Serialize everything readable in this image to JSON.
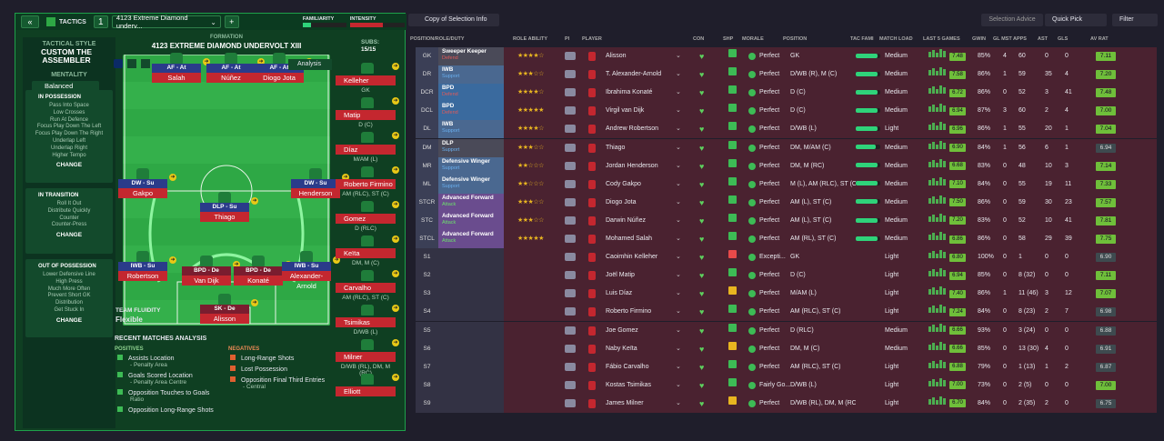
{
  "topbar": {
    "tactics_label": "TACTICS",
    "slot": "1",
    "tactic_name": "4123 Extreme Diamond underv...",
    "familiarity": "FAMILIARITY",
    "intensity": "INTENSITY"
  },
  "sidebar": {
    "style_label": "TACTICAL STYLE",
    "style_name": "CUSTOM THE ASSEMBLER",
    "mentality_label": "MENTALITY",
    "mentality": "Balanced",
    "in_possession": {
      "title": "IN POSSESSION",
      "items": [
        "Pass Into Space",
        "Low Crosses",
        "Run At Defence",
        "Focus Play Down The Left",
        "Focus Play Down The Right",
        "Underlap Left",
        "Underlap Right",
        "Higher Tempo"
      ],
      "change": "CHANGE"
    },
    "in_transition": {
      "title": "IN TRANSITION",
      "items": [
        "Roll It Out",
        "Distribute Quickly",
        "Counter",
        "Counter-Press"
      ],
      "change": "CHANGE"
    },
    "out_possession": {
      "title": "OUT OF POSSESSION",
      "items": [
        "Lower Defensive Line",
        "High Press",
        "Much More Often",
        "Prevent Short GK",
        "Distribution",
        "Get Stuck In"
      ],
      "change": "CHANGE"
    }
  },
  "formation": {
    "label": "FORMATION",
    "name": "4123 EXTREME DIAMOND UNDERVOLT XIII",
    "subs_label": "SUBS:",
    "subs_count": "15/15",
    "analysis": "Analysis",
    "fluidity_label": "TEAM FLUIDITY",
    "fluidity": "Flexible"
  },
  "pitch_players": [
    {
      "role": "AF - At",
      "name": "Salah"
    },
    {
      "role": "AF - At",
      "name": "Núñez"
    },
    {
      "role": "AF - At",
      "name": "Diogo Jota"
    },
    {
      "role": "DW - Su",
      "name": "Gakpo"
    },
    {
      "role": "DW - Su",
      "name": "Henderson"
    },
    {
      "role": "DLP - Su",
      "name": "Thiago"
    },
    {
      "role": "IWB - Su",
      "name": "Robertson"
    },
    {
      "role": "BPD - De",
      "name": "Van Dijk"
    },
    {
      "role": "BPD - De",
      "name": "Konaté"
    },
    {
      "role": "IWB - Su",
      "name": "Alexander-Arnold"
    },
    {
      "role": "SK - De",
      "name": "Alisson"
    }
  ],
  "subs": [
    {
      "name": "Kelleher",
      "pos": "GK"
    },
    {
      "name": "Matip",
      "pos": "D (C)"
    },
    {
      "name": "Díaz",
      "pos": "M/AM (L)"
    },
    {
      "name": "Roberto Firmino",
      "pos": "AM (RLC), ST (C)"
    },
    {
      "name": "Gomez",
      "pos": "D (RLC)"
    },
    {
      "name": "Keïta",
      "pos": "DM, M (C)"
    },
    {
      "name": "Carvalho",
      "pos": "AM (RLC), ST (C)"
    },
    {
      "name": "Tsimikas",
      "pos": "D/WB (L)"
    },
    {
      "name": "Milner",
      "pos": "D/WB (RL), DM, M (RC)"
    },
    {
      "name": "Elliott",
      "pos": ""
    }
  ],
  "analysis": {
    "title": "RECENT MATCHES ANALYSIS",
    "positives_label": "POSITIVES",
    "negatives_label": "NEGATIVES",
    "positives": [
      {
        "t": "Assists Location",
        "s": "- Penalty Area"
      },
      {
        "t": "Goals Scored Location",
        "s": "- Penalty Area Centre"
      },
      {
        "t": "Opposition Touches to Goals",
        "s": "Ratio"
      },
      {
        "t": "Opposition Long-Range Shots",
        "s": ""
      }
    ],
    "negatives": [
      {
        "t": "Long-Range Shots",
        "s": ""
      },
      {
        "t": "Lost Possession",
        "s": ""
      },
      {
        "t": "Opposition Final Third Entries",
        "s": "- Central"
      }
    ]
  },
  "right": {
    "copy_btn": "Copy of Selection Info",
    "selection_advice": "Selection Advice",
    "quick_pick": "Quick Pick",
    "filter": "Filter",
    "headers": [
      "POSITION/ROLE/DUTY",
      "ROLE ABILITY",
      "PI",
      "PLAYER",
      "CON",
      "SHP",
      "MORALE",
      "POSITION",
      "TAC FAMI",
      "MATCH LOAD",
      "LAST 5 GAMES",
      "GWIN",
      "GL MST",
      "APPS",
      "AST",
      "GLS",
      "AV RAT"
    ],
    "rows": [
      {
        "pos": "GK",
        "role": "Sweeper Keeper",
        "duty": "Defend",
        "stars": "★★★★☆",
        "player": "Alisson",
        "morale": "Perfect",
        "position": "GK",
        "load": "Medium",
        "gr": "7.48",
        "gwin": "85%",
        "glmst": "4",
        "apps": "60",
        "ast": "0",
        "gls": "0",
        "av": "7.11"
      },
      {
        "pos": "DR",
        "role": "IWB",
        "duty": "Support",
        "stars": "★★★☆☆",
        "player": "T. Alexander-Arnold",
        "morale": "Perfect",
        "position": "D/WB (R), M (C)",
        "load": "Medium",
        "gr": "7.58",
        "gwin": "86%",
        "glmst": "1",
        "apps": "59",
        "ast": "35",
        "gls": "4",
        "av": "7.20"
      },
      {
        "pos": "DCR",
        "role": "BPD",
        "duty": "Defend",
        "stars": "★★★★☆",
        "player": "Ibrahima Konaté",
        "morale": "Perfect",
        "position": "D (C)",
        "load": "Medium",
        "gr": "6.72",
        "gwin": "86%",
        "glmst": "0",
        "apps": "52",
        "ast": "3",
        "gls": "41",
        "av": "7.48"
      },
      {
        "pos": "DCL",
        "role": "BPD",
        "duty": "Defend",
        "stars": "★★★★★",
        "player": "Virgil van Dijk",
        "morale": "Perfect",
        "position": "D (C)",
        "load": "Medium",
        "gr": "6.94",
        "gwin": "87%",
        "glmst": "3",
        "apps": "60",
        "ast": "2",
        "gls": "4",
        "av": "7.00"
      },
      {
        "pos": "DL",
        "role": "IWB",
        "duty": "Support",
        "stars": "★★★★☆",
        "player": "Andrew Robertson",
        "morale": "Perfect",
        "position": "D/WB (L)",
        "load": "Light",
        "gr": "6.96",
        "gwin": "86%",
        "glmst": "1",
        "apps": "55",
        "ast": "20",
        "gls": "1",
        "av": "7.04"
      },
      {
        "pos": "DM",
        "role": "DLP",
        "duty": "Support",
        "stars": "★★★☆☆",
        "player": "Thiago",
        "morale": "Perfect",
        "position": "DM, M/AM (C)",
        "load": "Medium",
        "gr": "6.90",
        "gwin": "84%",
        "glmst": "1",
        "apps": "56",
        "ast": "6",
        "gls": "1",
        "av": "6.94"
      },
      {
        "pos": "MR",
        "role": "Defensive Winger",
        "duty": "Support",
        "stars": "★★☆☆☆",
        "player": "Jordan Henderson",
        "morale": "Perfect",
        "position": "DM, M (RC)",
        "load": "Medium",
        "gr": "6.68",
        "gwin": "83%",
        "glmst": "0",
        "apps": "48",
        "ast": "10",
        "gls": "3",
        "av": "7.14"
      },
      {
        "pos": "ML",
        "role": "Defensive Winger",
        "duty": "Support",
        "stars": "★★☆☆☆",
        "player": "Cody Gakpo",
        "morale": "Perfect",
        "position": "M (L), AM (RLC), ST (C)",
        "load": "Medium",
        "gr": "7.10",
        "gwin": "84%",
        "glmst": "0",
        "apps": "55",
        "ast": "19",
        "gls": "11",
        "av": "7.33"
      },
      {
        "pos": "STCR",
        "role": "Advanced Forward",
        "duty": "Attack",
        "stars": "★★★☆☆",
        "player": "Diogo Jota",
        "morale": "Perfect",
        "position": "AM (L), ST (C)",
        "load": "Medium",
        "gr": "7.50",
        "gwin": "86%",
        "glmst": "0",
        "apps": "59",
        "ast": "30",
        "gls": "23",
        "av": "7.57"
      },
      {
        "pos": "STC",
        "role": "Advanced Forward",
        "duty": "Attack",
        "stars": "★★★☆☆",
        "player": "Darwin Núñez",
        "morale": "Perfect",
        "position": "AM (L), ST (C)",
        "load": "Medium",
        "gr": "7.20",
        "gwin": "83%",
        "glmst": "0",
        "apps": "52",
        "ast": "10",
        "gls": "41",
        "av": "7.81"
      },
      {
        "pos": "STCL",
        "role": "Advanced Forward",
        "duty": "Attack",
        "stars": "★★★★★",
        "player": "Mohamed Salah",
        "morale": "Perfect",
        "position": "AM (RL), ST (C)",
        "load": "Medium",
        "gr": "6.86",
        "gwin": "86%",
        "glmst": "0",
        "apps": "58",
        "ast": "29",
        "gls": "39",
        "av": "7.75"
      },
      {
        "pos": "S1",
        "role": "",
        "duty": "",
        "stars": "",
        "player": "Caoimhin Kelleher",
        "morale": "Excepti...",
        "position": "GK",
        "load": "Light",
        "gr": "6.80",
        "gwin": "100%",
        "glmst": "0",
        "apps": "1",
        "ast": "0",
        "gls": "0",
        "av": "6.90"
      },
      {
        "pos": "S2",
        "role": "",
        "duty": "",
        "stars": "",
        "player": "Joël Matip",
        "morale": "Perfect",
        "position": "D (C)",
        "load": "Light",
        "gr": "6.94",
        "gwin": "85%",
        "glmst": "0",
        "apps": "8 (32)",
        "ast": "0",
        "gls": "0",
        "av": "7.11"
      },
      {
        "pos": "S3",
        "role": "",
        "duty": "",
        "stars": "",
        "player": "Luis Díaz",
        "morale": "Perfect",
        "position": "M/AM (L)",
        "load": "Light",
        "gr": "7.40",
        "gwin": "86%",
        "glmst": "1",
        "apps": "11 (46)",
        "ast": "3",
        "gls": "12",
        "av": "7.07"
      },
      {
        "pos": "S4",
        "role": "",
        "duty": "",
        "stars": "",
        "player": "Roberto Firmino",
        "morale": "Perfect",
        "position": "AM (RLC), ST (C)",
        "load": "Light",
        "gr": "7.24",
        "gwin": "84%",
        "glmst": "0",
        "apps": "8 (23)",
        "ast": "2",
        "gls": "7",
        "av": "6.98"
      },
      {
        "pos": "S5",
        "role": "",
        "duty": "",
        "stars": "",
        "player": "Joe Gomez",
        "morale": "Perfect",
        "position": "D (RLC)",
        "load": "Medium",
        "gr": "6.66",
        "gwin": "93%",
        "glmst": "0",
        "apps": "3 (24)",
        "ast": "0",
        "gls": "0",
        "av": "6.88"
      },
      {
        "pos": "S6",
        "role": "",
        "duty": "",
        "stars": "",
        "player": "Naby Keïta",
        "morale": "Perfect",
        "position": "DM, M (C)",
        "load": "Medium",
        "gr": "6.66",
        "gwin": "85%",
        "glmst": "0",
        "apps": "13 (30)",
        "ast": "4",
        "gls": "0",
        "av": "6.91"
      },
      {
        "pos": "S7",
        "role": "",
        "duty": "",
        "stars": "",
        "player": "Fábio Carvalho",
        "morale": "Perfect",
        "position": "AM (RLC), ST (C)",
        "load": "Light",
        "gr": "6.88",
        "gwin": "79%",
        "glmst": "0",
        "apps": "1 (13)",
        "ast": "1",
        "gls": "2",
        "av": "6.87"
      },
      {
        "pos": "S8",
        "role": "",
        "duty": "",
        "stars": "",
        "player": "Kostas Tsimikas",
        "morale": "Fairly Go...",
        "position": "D/WB (L)",
        "load": "Light",
        "gr": "7.00",
        "gwin": "73%",
        "glmst": "0",
        "apps": "2 (5)",
        "ast": "0",
        "gls": "0",
        "av": "7.00"
      },
      {
        "pos": "S9",
        "role": "",
        "duty": "",
        "stars": "",
        "player": "James Milner",
        "morale": "Perfect",
        "position": "D/WB (RL), DM, M (RC)",
        "load": "Light",
        "gr": "6.70",
        "gwin": "84%",
        "glmst": "0",
        "apps": "2 (35)",
        "ast": "2",
        "gls": "0",
        "av": "6.75"
      }
    ]
  },
  "colors": {
    "accent": "#1ea04a",
    "pitch": "#2ea845",
    "role_def": "#3a6a9e",
    "role_sup": "#4a6890",
    "role_att": "#6a4c8e",
    "row_bg": "#4a2230",
    "rating": "#6fbf3a"
  }
}
